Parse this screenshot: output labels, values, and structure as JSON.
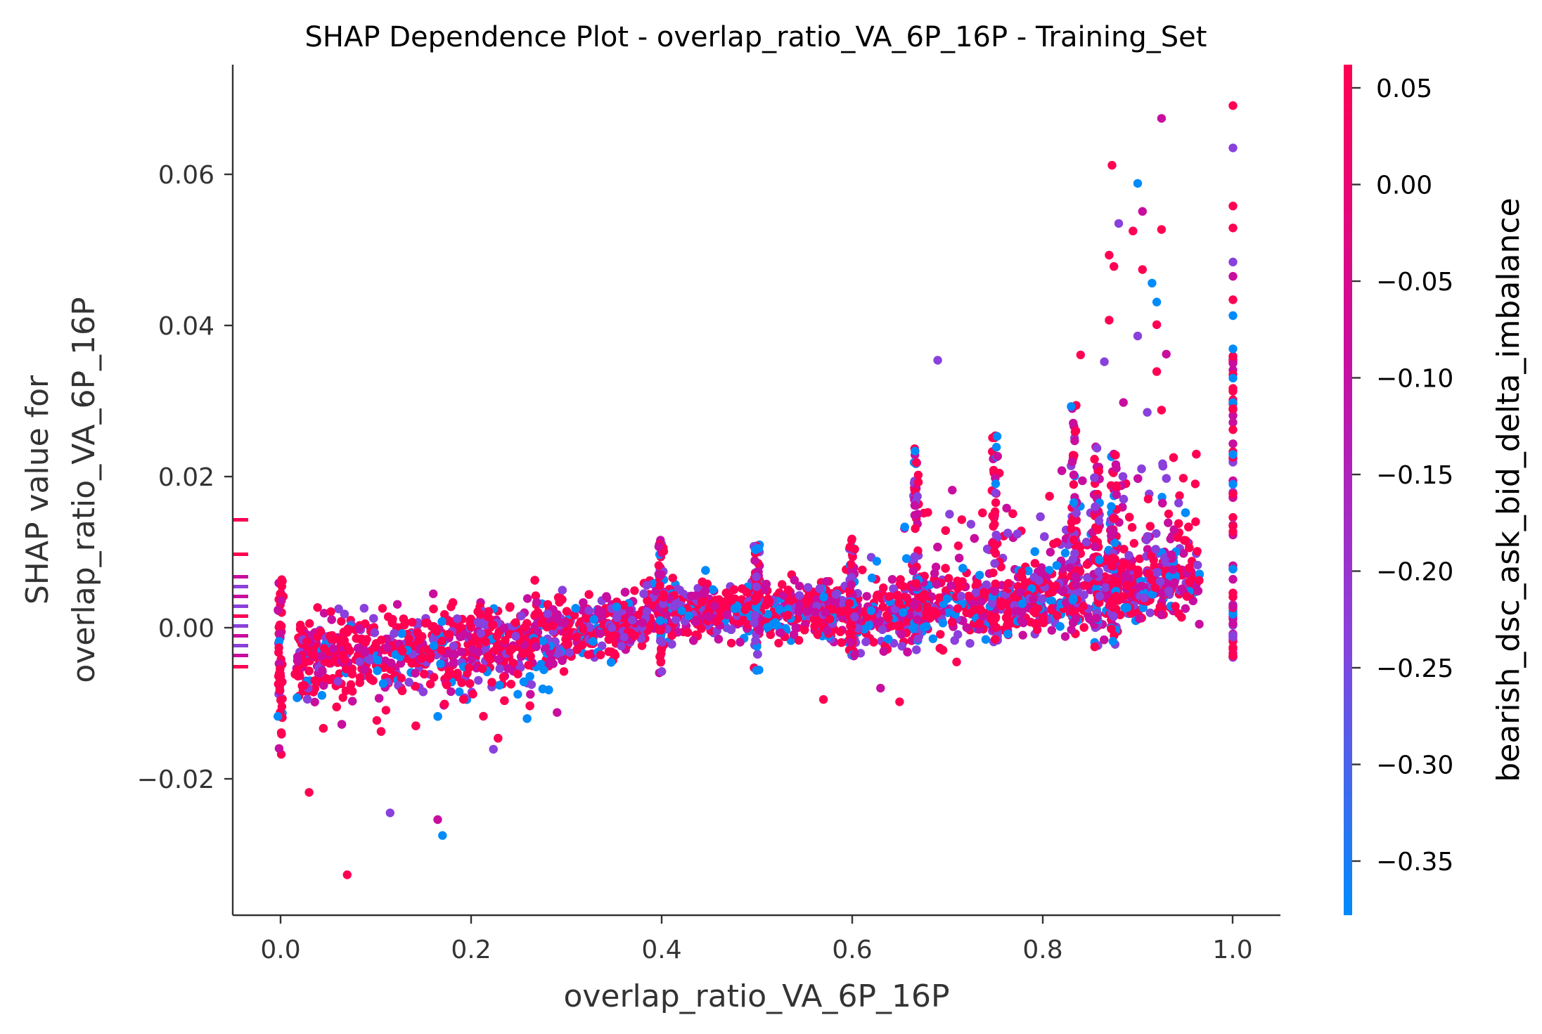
{
  "chart_data": {
    "type": "scatter",
    "title": "SHAP Dependence Plot - overlap_ratio_VA_6P_16P - Training_Set",
    "xlabel": "overlap_ratio_VA_6P_16P",
    "ylabel_line1": "SHAP value for",
    "ylabel_line2": "overlap_ratio_VA_6P_16P",
    "xlim": [
      -0.05,
      1.05
    ],
    "ylim": [
      -0.038,
      0.074
    ],
    "xticks": [
      0.0,
      0.2,
      0.4,
      0.6,
      0.8,
      1.0
    ],
    "xtick_labels": [
      "0.0",
      "0.2",
      "0.4",
      "0.6",
      "0.8",
      "1.0"
    ],
    "yticks": [
      -0.02,
      0.0,
      0.02,
      0.04,
      0.06
    ],
    "ytick_labels": [
      "−0.02",
      "0.00",
      "0.02",
      "0.04",
      "0.06"
    ],
    "grid": false,
    "colorbar": {
      "label": "bearish_dsc_ask_bid_delta_imbalance",
      "range": [
        -0.378,
        0.062
      ],
      "ticks": [
        0.05,
        0.0,
        -0.05,
        -0.1,
        -0.15,
        -0.2,
        -0.25,
        -0.3,
        -0.35
      ],
      "tick_labels": [
        "0.05",
        "0.00",
        "−0.05",
        "−0.10",
        "−0.15",
        "−0.20",
        "−0.25",
        "−0.30",
        "−0.35"
      ],
      "colors": [
        "#008bfb",
        "#8a40dc",
        "#c90d9f",
        "#ff0052"
      ]
    },
    "highlight_points": [
      [
        0.07,
        -0.0327
      ],
      [
        0.115,
        -0.0245
      ],
      [
        0.165,
        -0.0254
      ],
      [
        0.17,
        -0.0275
      ],
      [
        0.03,
        -0.0218
      ],
      [
        0.69,
        0.0354
      ],
      [
        0.873,
        0.0612
      ],
      [
        0.925,
        0.0674
      ],
      [
        1.0,
        0.0691
      ],
      [
        1.0,
        0.0635
      ],
      [
        0.9,
        0.0588
      ],
      [
        0.895,
        0.0525
      ],
      [
        0.905,
        0.0551
      ],
      [
        0.88,
        0.0535
      ],
      [
        0.87,
        0.0493
      ],
      [
        0.875,
        0.0478
      ],
      [
        0.905,
        0.0474
      ],
      [
        0.915,
        0.0456
      ],
      [
        0.925,
        0.0527
      ],
      [
        1.0,
        0.0558
      ],
      [
        1.0,
        0.0529
      ],
      [
        1.0,
        0.0484
      ],
      [
        1.0,
        0.0465
      ],
      [
        1.0,
        0.0434
      ],
      [
        1.0,
        0.0413
      ],
      [
        0.9,
        0.0386
      ],
      [
        0.92,
        0.0401
      ],
      [
        0.93,
        0.0362
      ],
      [
        0.87,
        0.0407
      ],
      [
        0.865,
        0.0352
      ],
      [
        0.92,
        0.0339
      ],
      [
        1.0,
        0.0369
      ],
      [
        0.885,
        0.0298
      ],
      [
        0.91,
        0.0285
      ],
      [
        0.925,
        0.0288
      ],
      [
        0.57,
        -0.0095
      ],
      [
        0.65,
        -0.0098
      ],
      [
        0.63,
        -0.008
      ],
      [
        0.92,
        0.0431
      ],
      [
        0.84,
        0.0361
      ]
    ]
  }
}
